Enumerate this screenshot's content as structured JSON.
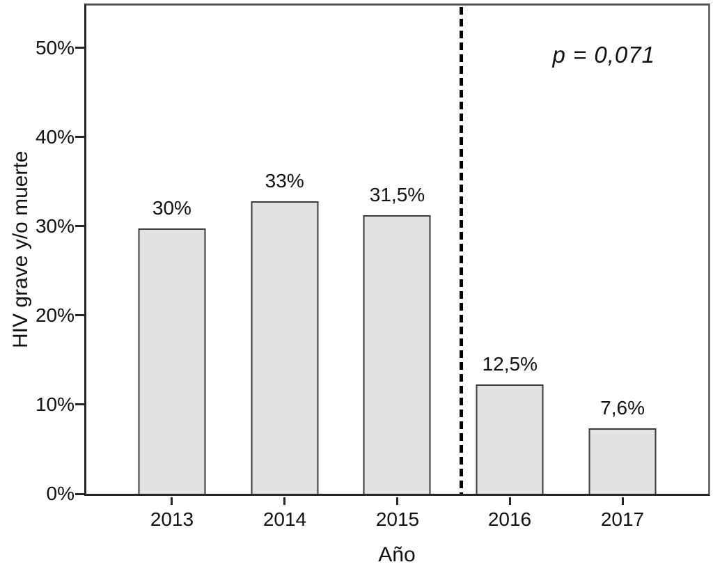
{
  "chart_data": {
    "type": "bar",
    "title": "",
    "categories": [
      "2013",
      "2014",
      "2015",
      "2016",
      "2017"
    ],
    "values": [
      30,
      33,
      31.5,
      12.5,
      7.6
    ],
    "bar_labels": [
      "30%",
      "33%",
      "31,5%",
      "12,5%",
      "7,6%"
    ],
    "xlabel": "Año",
    "ylabel": "HIV grave y/o muerte",
    "y_ticks": [
      "0%",
      "10%",
      "20%",
      "30%",
      "40%",
      "50%"
    ],
    "y_tick_values": [
      0,
      10,
      20,
      30,
      40,
      50
    ],
    "ylim": [
      0,
      55.2
    ],
    "grid": false,
    "legend": "none",
    "annotation": "p = 0,071",
    "separator": {
      "style": "dashed-vertical-line",
      "position": "between 2015 and 2016"
    },
    "colors": {
      "bar_fill": "#e2e2e2",
      "bar_border": "#3a3a3a",
      "axis": "#262626",
      "frame": "#6e6e6e",
      "separator": "#000000",
      "text": "#111111",
      "background": "#ffffff"
    }
  }
}
